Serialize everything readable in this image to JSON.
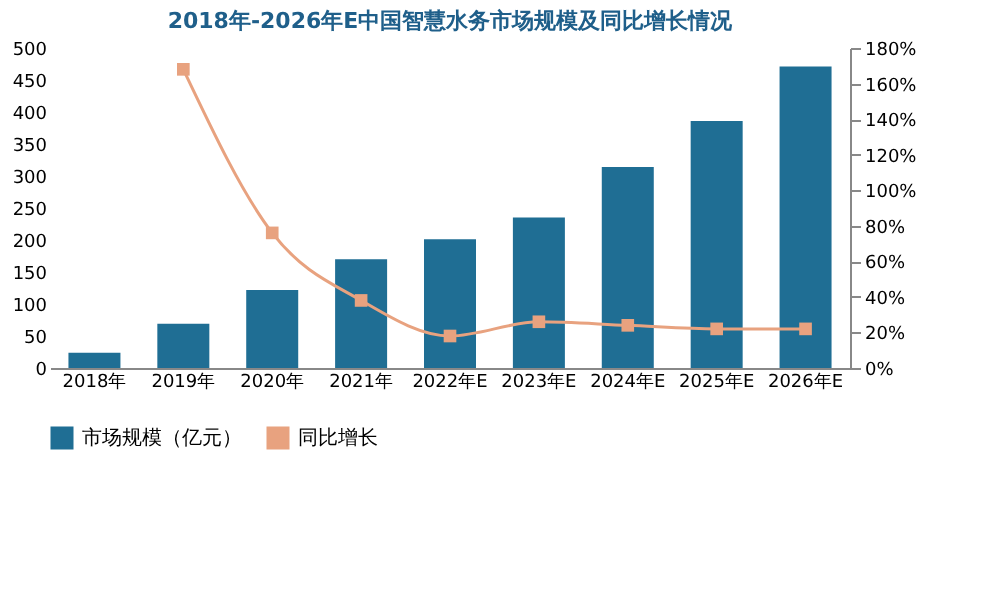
{
  "chart_data": {
    "type": "bar",
    "title": "2018年-2026年E中国智慧水务市场规模及同比增长情况",
    "categories": [
      "2018年",
      "2019年",
      "2020年",
      "2021年",
      "2022年E",
      "2023年E",
      "2024年E",
      "2025年E",
      "2026年E"
    ],
    "series": [
      {
        "name": "市场规模（亿元）",
        "color": "#1f6e94",
        "values": [
          24,
          69,
          122,
          170,
          201,
          235,
          314,
          386,
          471
        ]
      },
      {
        "name": "同比增长",
        "type": "line",
        "axis": "y2",
        "color": "#e8a27f",
        "marker": "square",
        "values": [
          null,
          168,
          76,
          38,
          18,
          26,
          24,
          22,
          22
        ]
      }
    ],
    "ylim": [
      0,
      500
    ],
    "yticks": [
      0,
      50,
      100,
      150,
      200,
      250,
      300,
      350,
      400,
      450,
      500
    ],
    "y2lim": [
      0,
      180
    ],
    "y2ticks": [
      {
        "value": 0,
        "label": "0%"
      },
      {
        "value": 20,
        "label": "20%"
      },
      {
        "value": 40,
        "label": "40%"
      },
      {
        "value": 60,
        "label": "60%"
      },
      {
        "value": 80,
        "label": "80%"
      },
      {
        "value": 100,
        "label": "100%"
      },
      {
        "value": 120,
        "label": "120%"
      },
      {
        "value": 140,
        "label": "140%"
      },
      {
        "value": 160,
        "label": "160%"
      },
      {
        "value": 180,
        "label": "180%"
      }
    ],
    "legend": "bottom",
    "grid": false
  }
}
